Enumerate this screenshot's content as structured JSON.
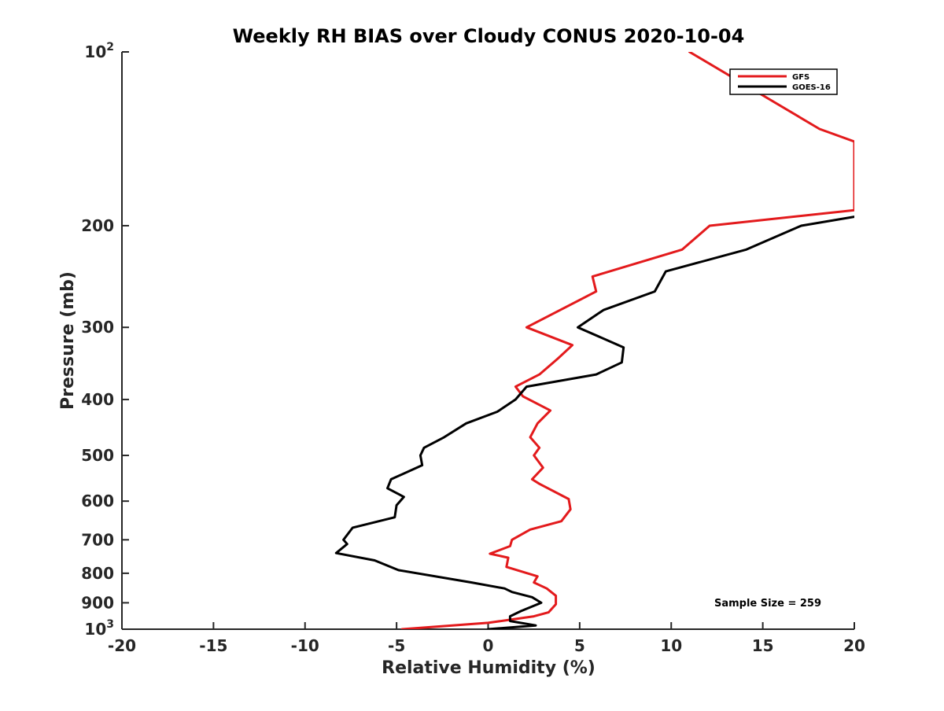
{
  "chart_data": {
    "type": "line",
    "title": "Weekly RH BIAS over Cloudy CONUS 2020-10-04",
    "xlabel": "Relative Humidity (%)",
    "ylabel": "Pressure (mb)",
    "xlim": [
      -20,
      20
    ],
    "ylim": [
      100,
      1000
    ],
    "y_scale": "log",
    "y_direction": "reversed",
    "grid": false,
    "x_ticks": [
      -20,
      -15,
      -10,
      -5,
      0,
      5,
      10,
      15,
      20
    ],
    "x_tick_labels": [
      "-20",
      "-15",
      "-10",
      "-5",
      "0",
      "5",
      "10",
      "15",
      "20"
    ],
    "y_ticks": [
      {
        "value": 100,
        "base": "10",
        "exp": "2",
        "label": ""
      },
      {
        "value": 200,
        "label": "200"
      },
      {
        "value": 300,
        "label": "300"
      },
      {
        "value": 400,
        "label": "400"
      },
      {
        "value": 500,
        "label": "500"
      },
      {
        "value": 600,
        "label": "600"
      },
      {
        "value": 700,
        "label": "700"
      },
      {
        "value": 800,
        "label": "800"
      },
      {
        "value": 900,
        "label": "900"
      },
      {
        "value": 1000,
        "base": "10",
        "exp": "3",
        "label": ""
      }
    ],
    "legend_position": "top-right",
    "annotation": "Sample Size = 259",
    "series": [
      {
        "name": "GFS",
        "color": "#e31a1c",
        "points": [
          [
            11.0,
            100
          ],
          [
            18.1,
            136
          ],
          [
            20.0,
            143
          ],
          [
            20.0,
            188
          ],
          [
            12.1,
            200
          ],
          [
            10.6,
            220
          ],
          [
            5.7,
            245
          ],
          [
            5.9,
            260
          ],
          [
            2.1,
            300
          ],
          [
            4.6,
            322
          ],
          [
            3.8,
            340
          ],
          [
            2.8,
            362
          ],
          [
            1.5,
            380
          ],
          [
            1.9,
            395
          ],
          [
            3.4,
            418
          ],
          [
            2.7,
            440
          ],
          [
            2.3,
            465
          ],
          [
            2.8,
            485
          ],
          [
            2.5,
            500
          ],
          [
            3.0,
            525
          ],
          [
            2.4,
            550
          ],
          [
            2.8,
            560
          ],
          [
            4.4,
            595
          ],
          [
            4.5,
            620
          ],
          [
            4.0,
            650
          ],
          [
            2.3,
            672
          ],
          [
            1.3,
            700
          ],
          [
            1.2,
            718
          ],
          [
            0.1,
            740
          ],
          [
            1.1,
            752
          ],
          [
            1.0,
            780
          ],
          [
            2.7,
            810
          ],
          [
            2.5,
            830
          ],
          [
            3.2,
            850
          ],
          [
            3.7,
            875
          ],
          [
            3.7,
            905
          ],
          [
            3.3,
            935
          ],
          [
            2.5,
            950
          ],
          [
            0.0,
            975
          ],
          [
            -4.7,
            1000
          ]
        ]
      },
      {
        "name": "GOES-16",
        "color": "#000000",
        "points": [
          [
            20.0,
            193
          ],
          [
            17.1,
            200
          ],
          [
            14.1,
            220
          ],
          [
            9.7,
            240
          ],
          [
            9.1,
            260
          ],
          [
            6.3,
            280
          ],
          [
            4.9,
            300
          ],
          [
            7.4,
            325
          ],
          [
            7.3,
            345
          ],
          [
            5.9,
            362
          ],
          [
            2.1,
            380
          ],
          [
            1.5,
            400
          ],
          [
            0.5,
            420
          ],
          [
            -1.2,
            440
          ],
          [
            -2.4,
            465
          ],
          [
            -3.5,
            485
          ],
          [
            -3.7,
            500
          ],
          [
            -3.6,
            520
          ],
          [
            -5.3,
            550
          ],
          [
            -5.5,
            570
          ],
          [
            -4.6,
            590
          ],
          [
            -5.0,
            610
          ],
          [
            -5.1,
            640
          ],
          [
            -7.4,
            667
          ],
          [
            -7.9,
            700
          ],
          [
            -7.7,
            712
          ],
          [
            -8.3,
            738
          ],
          [
            -6.2,
            760
          ],
          [
            -4.9,
            790
          ],
          [
            -0.9,
            830
          ],
          [
            0.9,
            850
          ],
          [
            1.3,
            862
          ],
          [
            2.4,
            880
          ],
          [
            2.9,
            900
          ],
          [
            1.8,
            930
          ],
          [
            1.2,
            950
          ],
          [
            1.2,
            968
          ],
          [
            2.6,
            985
          ],
          [
            0.0,
            1000
          ]
        ]
      }
    ]
  }
}
